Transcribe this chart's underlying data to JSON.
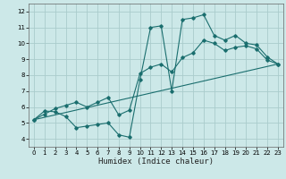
{
  "xlabel": "Humidex (Indice chaleur)",
  "bg_color": "#cce8e8",
  "grid_color": "#aacccc",
  "line_color": "#1a6e6e",
  "xlim": [
    -0.5,
    23.5
  ],
  "ylim": [
    3.5,
    12.5
  ],
  "xticks": [
    0,
    1,
    2,
    3,
    4,
    5,
    6,
    7,
    8,
    9,
    10,
    11,
    12,
    13,
    14,
    15,
    16,
    17,
    18,
    19,
    20,
    21,
    22,
    23
  ],
  "yticks": [
    4,
    5,
    6,
    7,
    8,
    9,
    10,
    11,
    12
  ],
  "curve1_x": [
    0,
    1,
    2,
    3,
    4,
    5,
    6,
    7,
    8,
    9,
    10,
    11,
    12,
    13,
    14,
    15,
    16,
    17,
    18,
    19,
    20,
    21,
    22,
    23
  ],
  "curve1_y": [
    5.2,
    5.75,
    5.7,
    5.4,
    4.7,
    4.8,
    4.9,
    5.0,
    4.25,
    4.1,
    7.7,
    11.0,
    11.1,
    7.0,
    11.5,
    11.6,
    11.8,
    10.5,
    10.2,
    10.5,
    10.0,
    9.9,
    9.15,
    8.7
  ],
  "curve2_x": [
    0,
    23
  ],
  "curve2_y": [
    5.2,
    8.7
  ],
  "curve3_x": [
    0,
    1,
    2,
    3,
    4,
    5,
    6,
    7,
    8,
    9,
    10,
    11,
    12,
    13,
    14,
    15,
    16,
    17,
    18,
    19,
    20,
    21,
    22,
    23
  ],
  "curve3_y": [
    5.2,
    5.55,
    5.9,
    6.1,
    6.3,
    6.0,
    6.3,
    6.6,
    5.5,
    5.8,
    8.1,
    8.5,
    8.7,
    8.2,
    9.1,
    9.4,
    10.2,
    10.0,
    9.55,
    9.75,
    9.85,
    9.65,
    8.95,
    8.7
  ]
}
